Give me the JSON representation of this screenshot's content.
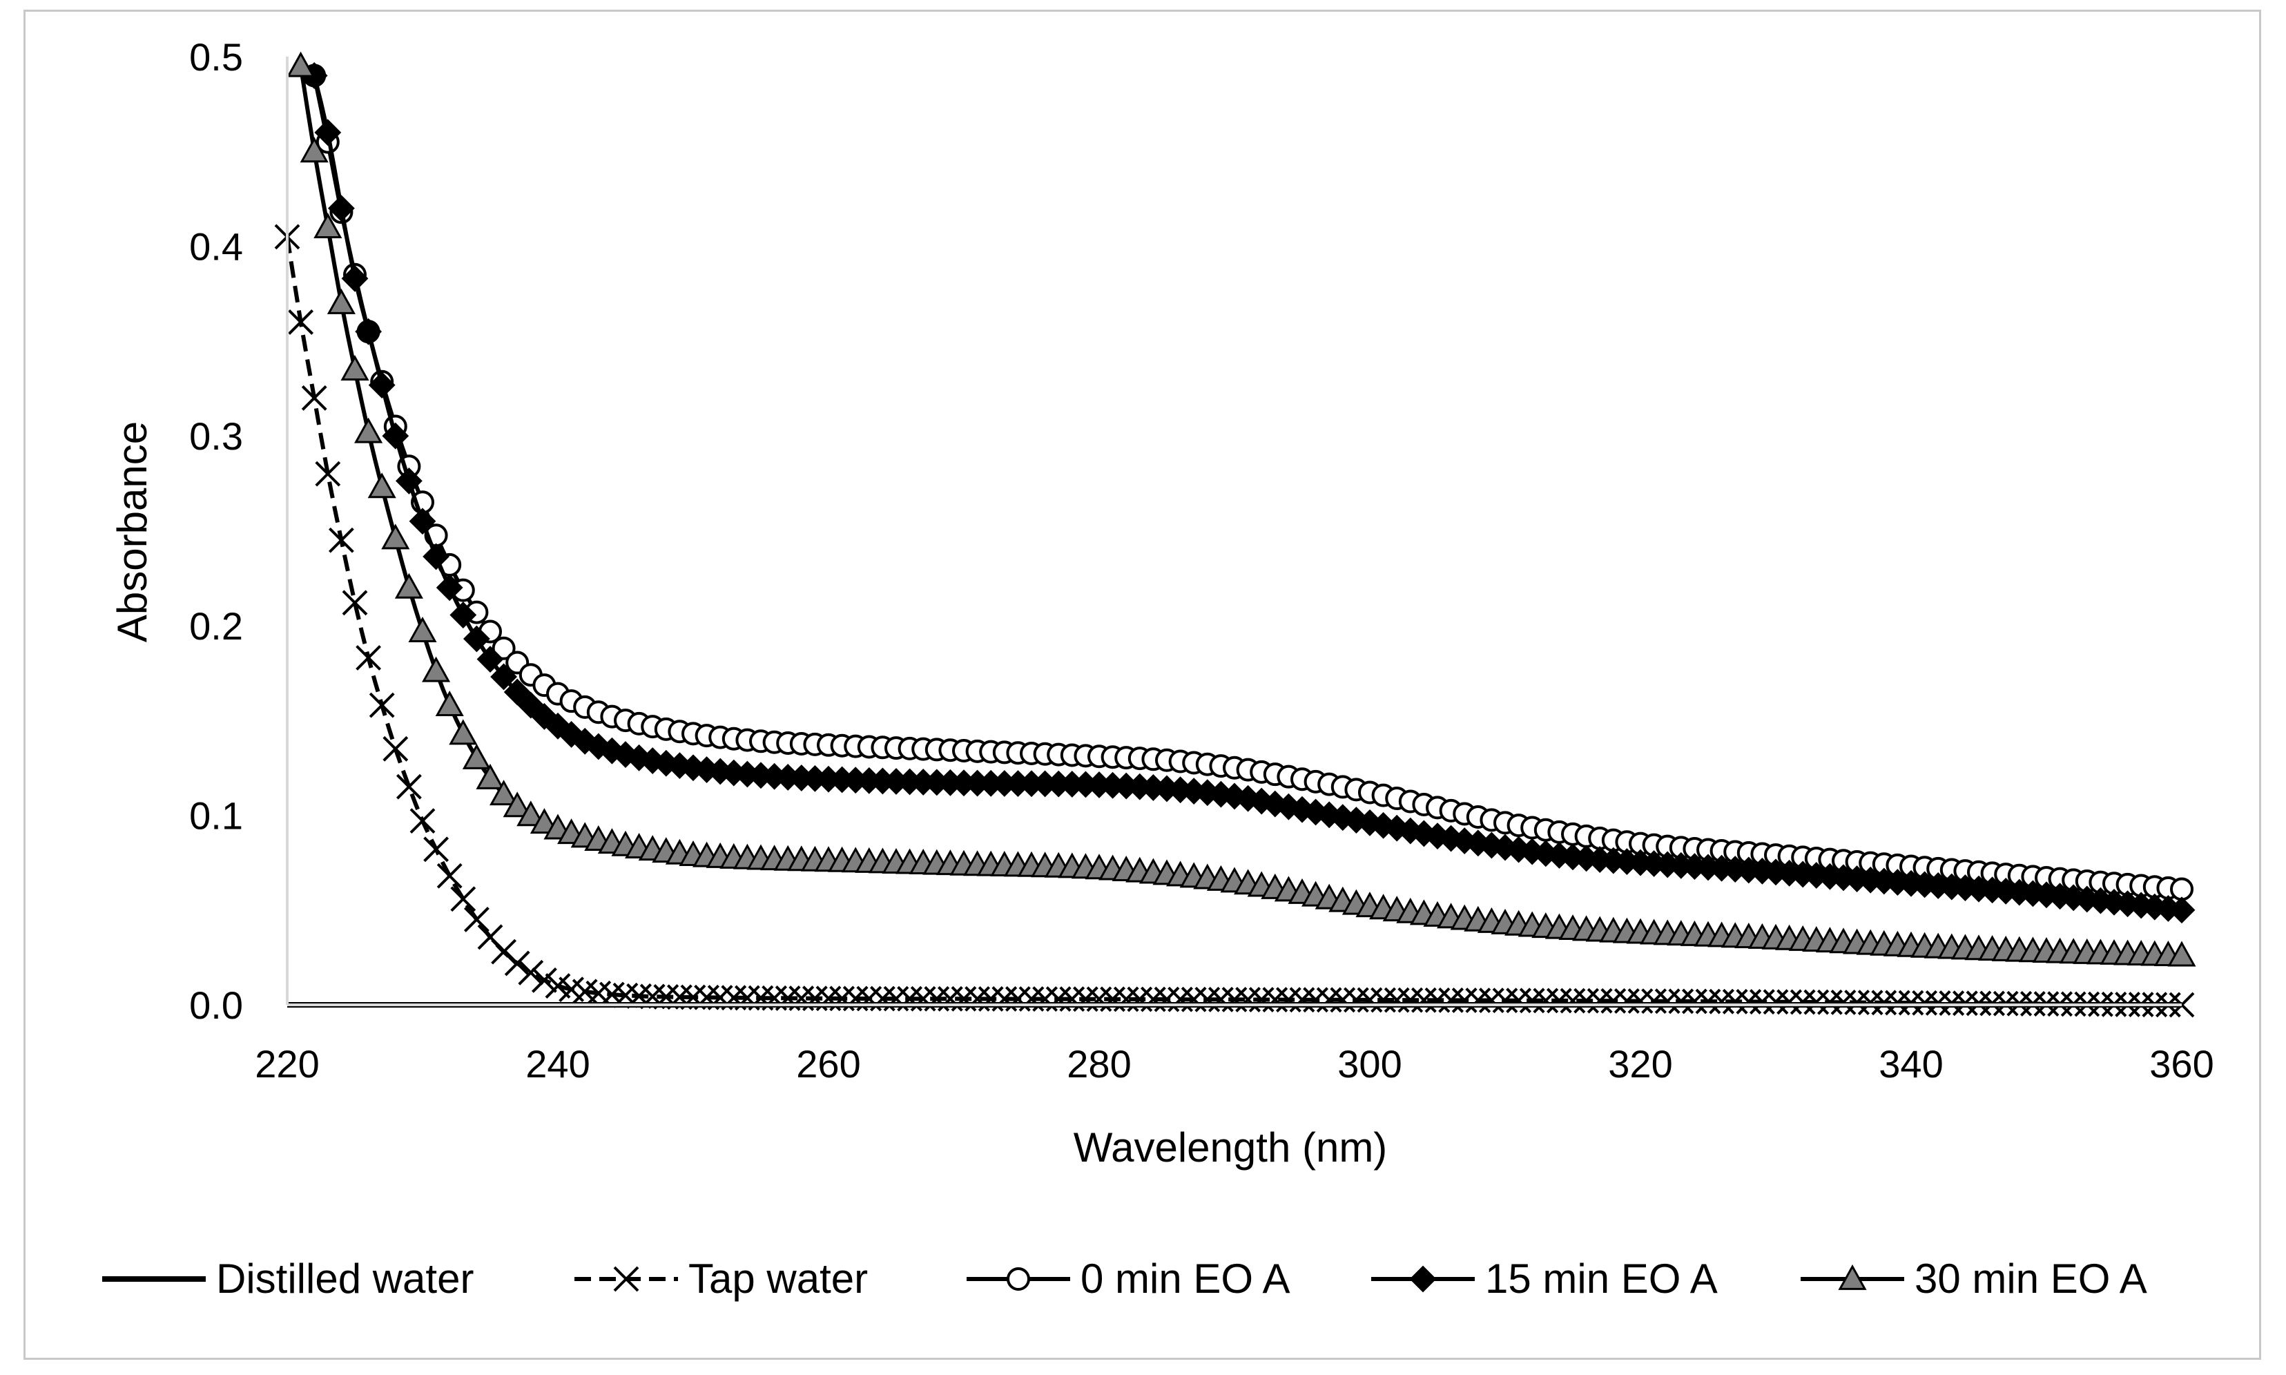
{
  "chart_data": {
    "type": "line",
    "title": "",
    "xlabel": "Wavelength (nm)",
    "ylabel": "Absorbance",
    "xlim": [
      220,
      360
    ],
    "ylim": [
      0,
      0.5
    ],
    "xticks": [
      220,
      240,
      260,
      280,
      300,
      320,
      340,
      360
    ],
    "yticks": [
      0,
      0.1,
      0.2,
      0.3,
      0.4,
      0.5
    ],
    "ytick_labels": [
      "0.0",
      "0.1",
      "0.2",
      "0.3",
      "0.4",
      "0.5"
    ],
    "grid": false,
    "legend_position": "bottom",
    "series": [
      {
        "name": "Distilled water",
        "marker": "none",
        "line": "solid",
        "points": [
          [
            220,
            0.0
          ],
          [
            360,
            0.0
          ]
        ]
      },
      {
        "name": "Tap water",
        "marker": "x",
        "line": "dashed",
        "points": [
          [
            220,
            0.405
          ],
          [
            221,
            0.36
          ],
          [
            222,
            0.32
          ],
          [
            223,
            0.28
          ],
          [
            224,
            0.245
          ],
          [
            225,
            0.212
          ],
          [
            226,
            0.183
          ],
          [
            227,
            0.158
          ],
          [
            228,
            0.135
          ],
          [
            229,
            0.115
          ],
          [
            230,
            0.097
          ],
          [
            231,
            0.082
          ],
          [
            232,
            0.068
          ],
          [
            234,
            0.045
          ],
          [
            236,
            0.028
          ],
          [
            238,
            0.017
          ],
          [
            240,
            0.01
          ],
          [
            242,
            0.007
          ],
          [
            245,
            0.005
          ],
          [
            250,
            0.004
          ],
          [
            280,
            0.003
          ],
          [
            320,
            0.002
          ],
          [
            360,
            0.0
          ]
        ]
      },
      {
        "name": "0 min EO A",
        "marker": "circle-open",
        "line": "solid",
        "points": [
          [
            222,
            0.49
          ],
          [
            223,
            0.455
          ],
          [
            224,
            0.418
          ],
          [
            226,
            0.355
          ],
          [
            228,
            0.305
          ],
          [
            230,
            0.265
          ],
          [
            232,
            0.232
          ],
          [
            234,
            0.207
          ],
          [
            236,
            0.188
          ],
          [
            238,
            0.174
          ],
          [
            240,
            0.164
          ],
          [
            242,
            0.157
          ],
          [
            245,
            0.15
          ],
          [
            250,
            0.143
          ],
          [
            255,
            0.139
          ],
          [
            260,
            0.137
          ],
          [
            270,
            0.134
          ],
          [
            280,
            0.131
          ],
          [
            285,
            0.129
          ],
          [
            290,
            0.125
          ],
          [
            295,
            0.119
          ],
          [
            300,
            0.112
          ],
          [
            305,
            0.104
          ],
          [
            310,
            0.096
          ],
          [
            315,
            0.09
          ],
          [
            320,
            0.085
          ],
          [
            330,
            0.079
          ],
          [
            340,
            0.073
          ],
          [
            350,
            0.067
          ],
          [
            360,
            0.061
          ]
        ]
      },
      {
        "name": "15 min EO A",
        "marker": "diamond-filled",
        "line": "solid",
        "points": [
          [
            222,
            0.49
          ],
          [
            223,
            0.46
          ],
          [
            224,
            0.42
          ],
          [
            225,
            0.383
          ],
          [
            226,
            0.355
          ],
          [
            228,
            0.3
          ],
          [
            230,
            0.255
          ],
          [
            232,
            0.22
          ],
          [
            234,
            0.193
          ],
          [
            236,
            0.173
          ],
          [
            238,
            0.158
          ],
          [
            240,
            0.147
          ],
          [
            242,
            0.139
          ],
          [
            245,
            0.132
          ],
          [
            250,
            0.125
          ],
          [
            255,
            0.121
          ],
          [
            260,
            0.119
          ],
          [
            270,
            0.117
          ],
          [
            280,
            0.116
          ],
          [
            285,
            0.114
          ],
          [
            290,
            0.11
          ],
          [
            295,
            0.103
          ],
          [
            300,
            0.096
          ],
          [
            305,
            0.089
          ],
          [
            310,
            0.083
          ],
          [
            315,
            0.078
          ],
          [
            320,
            0.075
          ],
          [
            330,
            0.07
          ],
          [
            340,
            0.064
          ],
          [
            350,
            0.058
          ],
          [
            360,
            0.05
          ]
        ]
      },
      {
        "name": "30 min EO A",
        "marker": "triangle-filled",
        "line": "solid",
        "points": [
          [
            221,
            0.495
          ],
          [
            222,
            0.45
          ],
          [
            223,
            0.41
          ],
          [
            224,
            0.37
          ],
          [
            225,
            0.335
          ],
          [
            226,
            0.302
          ],
          [
            227,
            0.273
          ],
          [
            228,
            0.246
          ],
          [
            229,
            0.22
          ],
          [
            230,
            0.197
          ],
          [
            231,
            0.176
          ],
          [
            232,
            0.158
          ],
          [
            234,
            0.13
          ],
          [
            236,
            0.111
          ],
          [
            238,
            0.1
          ],
          [
            240,
            0.093
          ],
          [
            243,
            0.087
          ],
          [
            246,
            0.083
          ],
          [
            250,
            0.079
          ],
          [
            255,
            0.077
          ],
          [
            260,
            0.076
          ],
          [
            270,
            0.074
          ],
          [
            280,
            0.072
          ],
          [
            285,
            0.069
          ],
          [
            290,
            0.065
          ],
          [
            295,
            0.059
          ],
          [
            300,
            0.052
          ],
          [
            305,
            0.047
          ],
          [
            310,
            0.043
          ],
          [
            315,
            0.04
          ],
          [
            320,
            0.038
          ],
          [
            330,
            0.035
          ],
          [
            340,
            0.031
          ],
          [
            350,
            0.028
          ],
          [
            360,
            0.026
          ]
        ]
      }
    ]
  },
  "colors": {
    "line": "#000000",
    "marker_fill_grey": "#7f7f7f",
    "axis": "#d9d9d9",
    "frame": "#c8c8c8"
  }
}
